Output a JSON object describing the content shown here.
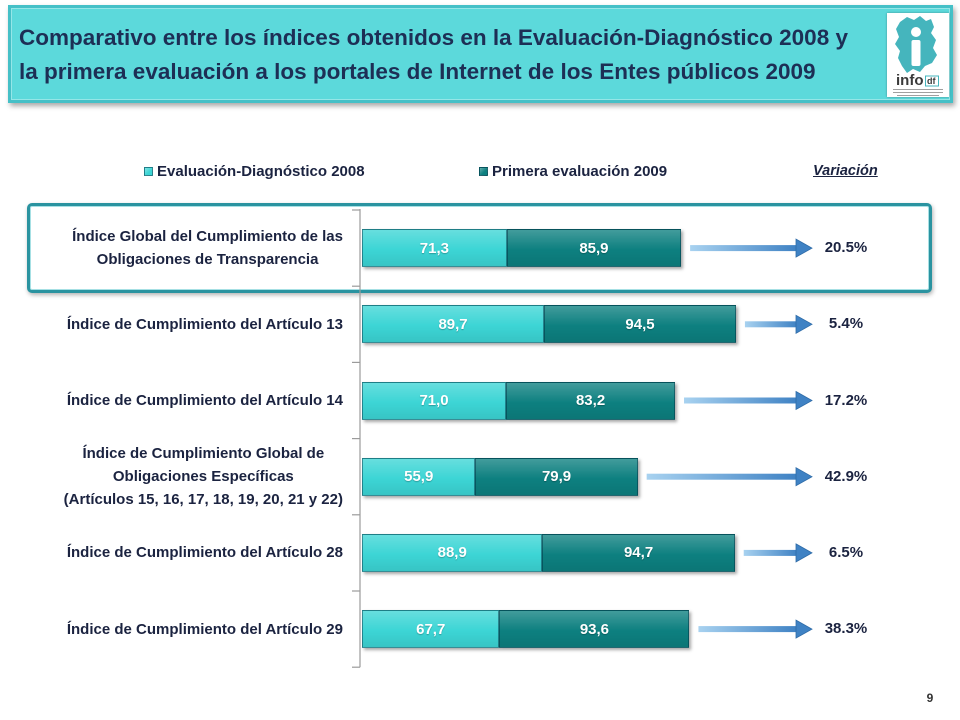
{
  "slide": {
    "title_lines": [
      "Comparativo entre los índices obtenidos en la Evaluación-Diagnóstico 2008 y",
      "la primera evaluación a los portales de Internet de los Entes públicos 2009"
    ],
    "page_number": "9"
  },
  "logo": {
    "name_main": "info",
    "name_suffix": "df"
  },
  "colors": {
    "header_background": "#5cd9db",
    "title_text": "#1d2f55",
    "highlight_border": "#2a93a0",
    "arrow": "#3f82c4",
    "arrow_light": "#a8d2f0",
    "logo_teal": "#45b5bd"
  },
  "chart_data": {
    "type": "bar",
    "orientation": "horizontal",
    "stacked": true,
    "categories": [
      "Índice Global del Cumplimiento de las\nObligaciones de Transparencia",
      "Índice de Cumplimiento del Artículo 13",
      "Índice de Cumplimiento del Artículo 14",
      "Índice de Cumplimiento Global de\nObligaciones Específicas\n(Artículos 15, 16, 17, 18, 19, 20, 21 y 22)",
      "Índice de Cumplimiento del Artículo 28",
      "Índice de Cumplimiento del Artículo 29"
    ],
    "series": [
      {
        "name": "Evaluación-Diagnóstico 2008",
        "color": "#3cd5d5",
        "values": [
          71.3,
          89.7,
          71.0,
          55.9,
          88.9,
          67.7
        ],
        "labels": [
          "71,3",
          "89,7",
          "71,0",
          "55,9",
          "88,9",
          "67,7"
        ]
      },
      {
        "name": "Primera evaluación 2009",
        "color": "#0d8080",
        "values": [
          85.9,
          94.5,
          83.2,
          79.9,
          94.7,
          93.6
        ],
        "labels": [
          "85,9",
          "94,5",
          "83,2",
          "79,9",
          "94,7",
          "93,6"
        ]
      }
    ],
    "variation_title": "Variación",
    "variation": [
      "20.5%",
      "5.4%",
      "17.2%",
      "42.9%",
      "6.5%",
      "38.3%"
    ],
    "highlighted_category": 0,
    "legend_position": "top",
    "grid": false
  }
}
